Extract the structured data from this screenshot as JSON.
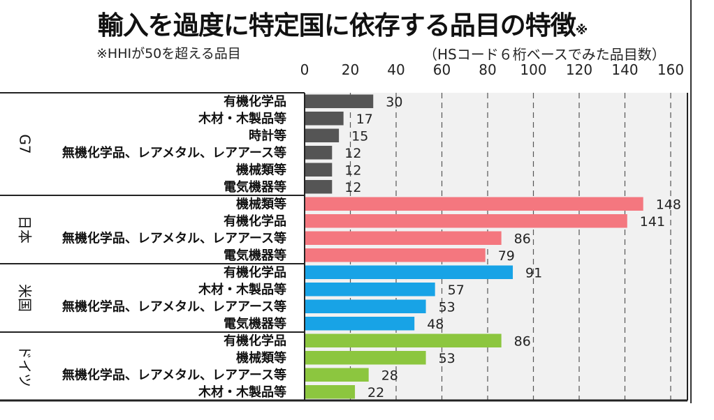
{
  "chart_data": {
    "type": "bar",
    "orientation": "horizontal",
    "title": "輸入を過度に特定国に依存する品目の特徴",
    "title_mark": "※",
    "note": "※HHIが50を超える品目",
    "unit_label": "（HSコード６桁ベースでみた品目数）",
    "xlim": [
      0,
      160
    ],
    "ticks": [
      "0",
      "20",
      "40",
      "60",
      "80",
      "100",
      "120",
      "140",
      "160"
    ],
    "grid": "vertical dashed",
    "groups": [
      {
        "name": "G7",
        "color": "#555555",
        "categories": [
          "有機化学品",
          "木材・木製品等",
          "時計等",
          "無機化学品、レアメタル、レアアース等",
          "機械類等",
          "電気機器等"
        ],
        "values": [
          30,
          17,
          15,
          12,
          12,
          12
        ]
      },
      {
        "name": "日本",
        "color": "#f4777f",
        "categories": [
          "機械類等",
          "有機化学品",
          "無機化学品、レアメタル、レアアース等",
          "電気機器等"
        ],
        "values": [
          148,
          141,
          86,
          79
        ]
      },
      {
        "name": "米国",
        "color": "#18a3e6",
        "categories": [
          "有機化学品",
          "木材・木製品等",
          "無機化学品、レアメタル、レアアース等",
          "電気機器等"
        ],
        "values": [
          91,
          57,
          53,
          48
        ]
      },
      {
        "name": "ドイツ",
        "color": "#8cc63f",
        "categories": [
          "有機化学品",
          "機械類等",
          "無機化学品、レアメタル、レアアース等",
          "木材・木製品等"
        ],
        "values": [
          86,
          53,
          28,
          22
        ]
      }
    ]
  }
}
